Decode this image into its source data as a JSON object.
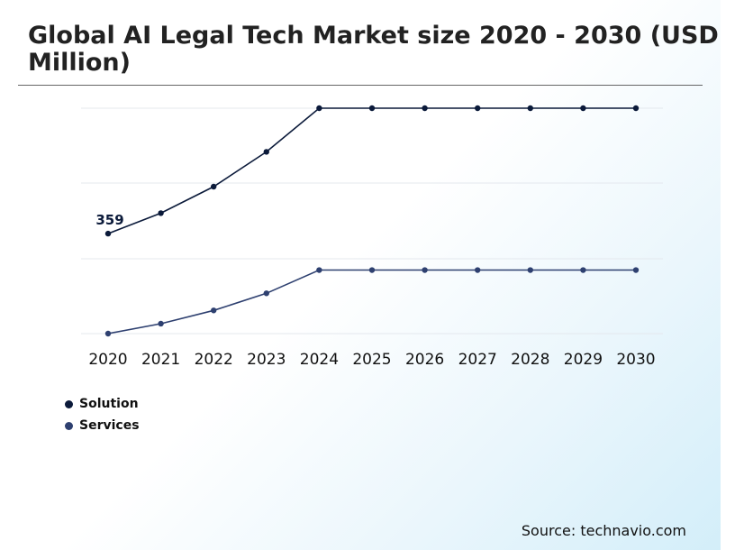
{
  "header": {
    "title": "Global AI Legal Tech Market size 2020 - 2030 (USD Million)"
  },
  "source": "Source: technavio.com",
  "colors": {
    "solution": "#0b1a3a",
    "services": "#2e4070",
    "grid": "#e4e8ee"
  },
  "chart_data": {
    "type": "line",
    "title": "Global AI Legal Tech Market size 2020 - 2030 (USD Million)",
    "x": [
      "2020",
      "2021",
      "2022",
      "2023",
      "2024",
      "2025",
      "2026",
      "2027",
      "2028",
      "2029",
      "2030"
    ],
    "series": [
      {
        "name": "Solution",
        "values": [
          359,
          396,
          444,
          507,
          586,
          586,
          586,
          586,
          586,
          586,
          586
        ]
      },
      {
        "name": "Services",
        "values": [
          178,
          196,
          220,
          251,
          293,
          293,
          293,
          293,
          293,
          293,
          293
        ]
      }
    ],
    "annotations": [
      {
        "series": "Solution",
        "x": "2020",
        "label": "359"
      }
    ],
    "ylim": [
      178,
      586
    ],
    "grid": true,
    "legend": "bottom-left"
  }
}
